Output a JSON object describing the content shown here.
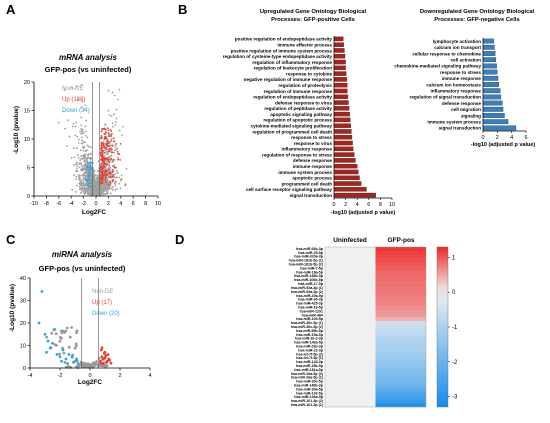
{
  "panel_labels": [
    "A",
    "B",
    "C",
    "D"
  ],
  "chart_data": [
    {
      "id": "A",
      "type": "scatter",
      "title": "mRNA analysis",
      "subtitle": "GFP-pos (vs uninfected)",
      "xlabel": "Log2FC",
      "ylabel": "-Log10 (pvalue)",
      "xlim": [
        -10,
        10
      ],
      "ylim": [
        0,
        20
      ],
      "xticks": [
        "-10",
        "-8",
        "-6",
        "-4",
        "-2",
        "0",
        "2",
        "4",
        "6",
        "8",
        "10"
      ],
      "yticks": [
        "0",
        "5",
        "10",
        "15",
        "20"
      ],
      "legend": [
        {
          "label": "Non-DE",
          "color": "#999999"
        },
        {
          "label": "Up (188)",
          "color": "#ee3b2b"
        },
        {
          "label": "Down (34)",
          "color": "#29a8e0"
        }
      ],
      "thresholds": {
        "log2fc": [
          -0.58,
          0.58
        ],
        "neglog10p": 1.3
      }
    },
    {
      "id": "B1",
      "type": "bar",
      "orientation": "horizontal",
      "title_lines": [
        "Upregulated Gene Ontology Biological",
        "Processes: GFP-positive Cells"
      ],
      "xlabel": "-log10 (adjusted p value)",
      "xlim": [
        0,
        10
      ],
      "xticks": [
        "0",
        "2",
        "4",
        "6",
        "8",
        "10"
      ],
      "color": "#a8231e",
      "categories": [
        "positive regulation of endopeptidase activity",
        "immune effector process",
        "positive regulation of immune system process",
        "regulation of cysteine-type endopeptidase activity",
        "regulation of inflammatory response",
        "regulation of leukocyte proliferation",
        "response to cytokine",
        "negative regulation of immune response",
        "regulation of proteolysis",
        "regulation of immune response",
        "regulation of endopeptidase activity",
        "defense response to virus",
        "regulation of peptidase activity",
        "apoptotic signaling pathway",
        "regulation of apoptotic process",
        "cytokine-mediated signaling pathway",
        "regulation of programmed cell death",
        "response to stress",
        "response to virus",
        "inflammatory response",
        "regulation of response to stress",
        "defense response",
        "immune response",
        "immune system process",
        "apoptotic process",
        "programmed cell death",
        "cell surface receptor signaling pathway",
        "signal transduction"
      ],
      "values": [
        1.6,
        1.7,
        1.8,
        1.9,
        2.0,
        2.0,
        2.1,
        2.2,
        2.3,
        2.3,
        2.4,
        2.5,
        2.6,
        2.7,
        2.8,
        2.9,
        3.0,
        3.1,
        3.2,
        3.3,
        3.5,
        3.7,
        4.0,
        4.2,
        4.4,
        4.7,
        5.6,
        7.2
      ]
    },
    {
      "id": "B2",
      "type": "bar",
      "orientation": "horizontal",
      "title_lines": [
        "Downregulated Gene Ontology Biological",
        "Processes: GFP-negative Cells"
      ],
      "xlabel": "-log10 (adjusted p value)",
      "xlim": [
        0,
        6
      ],
      "xticks": [
        "0",
        "2",
        "4",
        "6"
      ],
      "color": "#3a7fbf",
      "categories": [
        "lymphocyte activation",
        "calcium ion transport",
        "cellular response to chemokine",
        "cell activation",
        "chemokine-mediated signaling pathway",
        "response to stress",
        "immune response",
        "calcium ion homeostasis",
        "inflammatory response",
        "regulation of signal transduction",
        "defense response",
        "cell migration",
        "signaling",
        "immune system process",
        "signal transduction"
      ],
      "values": [
        1.5,
        1.6,
        1.7,
        1.8,
        1.9,
        2.0,
        2.1,
        2.2,
        2.4,
        2.5,
        2.7,
        2.8,
        3.0,
        3.5,
        4.6
      ]
    },
    {
      "id": "C",
      "type": "scatter",
      "title": "miRNA analysis",
      "subtitle": "GFP-pos (vs uninfected)",
      "xlabel": "Log2FC",
      "ylabel": "-Log10 (pvalue)",
      "xlim": [
        -4,
        4
      ],
      "ylim": [
        0,
        40
      ],
      "xticks": [
        "-4",
        "-2",
        "0",
        "2",
        "4"
      ],
      "yticks": [
        "0",
        "10",
        "20",
        "30",
        "40"
      ],
      "legend": [
        {
          "label": "Non-DE",
          "color": "#999999"
        },
        {
          "label": "Up (17)",
          "color": "#ee3b2b"
        },
        {
          "label": "Down (20)",
          "color": "#29a8e0"
        }
      ],
      "thresholds": {
        "log2fc": [
          -0.58,
          0.58
        ],
        "neglog10p": 1.3
      }
    },
    {
      "id": "D",
      "type": "heatmap",
      "columns": [
        "Uninfected",
        "GFP-pos"
      ],
      "rows": [
        "hsa-miR-92b-3p",
        "hsa-miR-25-5p",
        "hsa-miR-320a-3p",
        "hsa-miR-181b-5p (1)",
        "hsa-miR-181b-5p (2)",
        "hsa-miR-7-5p",
        "hsa-miR-18a-5p",
        "hsa-miR-148b-3p",
        "hsa-miR-106b-5p",
        "hsa-miR-17-5p",
        "hsa-miR-92a-3p (1)",
        "hsa-miR-92a-3p (2)",
        "hsa-miR-20a-5p",
        "hsa-miR-30-3p",
        "hsa-miR-425-3p",
        "hsa-miR-16-5p",
        "hsa-miR-1291",
        "hsa-miR-484",
        "hsa-miR-100-5p",
        "hsa-miR-30c-5p (1)",
        "hsa-miR-30c-5p (2)",
        "hsa-miR-99b-5p",
        "hsa-miR-15a-5p",
        "hsa-miR-16-2-3p",
        "hsa-miR-146a-5p",
        "hsa-miR-23b-3p",
        "hsa-miR-22-3p",
        "hsa-let-7f-5p (2)",
        "hsa-let-7f-5p (1)",
        "hsa-miR-143-3p",
        "hsa-miR-15b-5p",
        "hsa-miR-181a-5p",
        "hsa-miR-26a-5p (2)",
        "hsa-miR-26a-5p (1)",
        "hsa-miR-30e-5p",
        "hsa-miR-148b-3p",
        "hsa-miR-30a-5p",
        "hsa-miR-142-5p",
        "hsa-miR-146a-5p",
        "hsa-miR-101-3p (2)",
        "hsa-miR-101-3p (1)"
      ],
      "values_uninfected": [
        0,
        0,
        0,
        0,
        0,
        0,
        0,
        0,
        0,
        0,
        0,
        0,
        0,
        0,
        0,
        0,
        0,
        0,
        0,
        0,
        0,
        0,
        0,
        0,
        0,
        0,
        0,
        0,
        0,
        0,
        0,
        0,
        0,
        0,
        0,
        0,
        0,
        0,
        0,
        0,
        0
      ],
      "values_gfp_pos": [
        1.2,
        1.15,
        1.1,
        1.05,
        1.0,
        0.95,
        0.9,
        0.88,
        0.85,
        0.82,
        0.8,
        0.78,
        0.75,
        0.72,
        0.7,
        0.65,
        0.6,
        0.55,
        0.4,
        -0.5,
        -0.6,
        -0.7,
        -0.8,
        -0.9,
        -1.0,
        -1.05,
        -1.1,
        -1.2,
        -1.3,
        -1.4,
        -1.5,
        -1.6,
        -1.7,
        -1.8,
        -1.9,
        -2.0,
        -2.2,
        -2.4,
        -2.6,
        -2.8,
        -3.1
      ],
      "colorbar": {
        "min": -3.3,
        "max": 1.3,
        "ticks": [
          "1",
          "0",
          "-1",
          "-2",
          "-3"
        ],
        "tick_values": [
          1,
          0,
          -1,
          -2,
          -3
        ]
      }
    }
  ]
}
